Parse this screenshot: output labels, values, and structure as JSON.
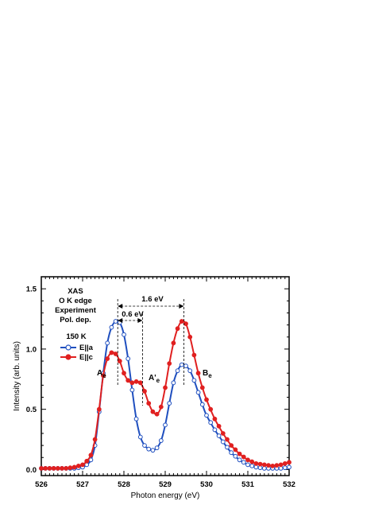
{
  "chart_data": {
    "type": "line",
    "xlabel": "Photon energy (eV)",
    "ylabel": "Intensity (arb. units)",
    "xlim": [
      526,
      532
    ],
    "ylim": [
      -0.05,
      1.6
    ],
    "xticks": [
      "526",
      "527",
      "528",
      "529",
      "530",
      "531",
      "532"
    ],
    "yticks": [
      "0.0",
      "0.5",
      "1.0",
      "1.5"
    ],
    "grid": false,
    "legend": "upper-left, inside",
    "info_lines": [
      "XAS",
      "O K edge",
      "Experiment",
      "Pol. dep."
    ],
    "temperature_label": "150 K",
    "series": [
      {
        "name": "E||a",
        "color": "#1f4fbf",
        "marker": "open-circle",
        "x": [
          526.0,
          526.2,
          526.4,
          526.6,
          526.8,
          527.0,
          527.1,
          527.2,
          527.3,
          527.4,
          527.5,
          527.6,
          527.7,
          527.8,
          527.9,
          528.0,
          528.1,
          528.2,
          528.3,
          528.4,
          528.5,
          528.6,
          528.7,
          528.8,
          528.9,
          529.0,
          529.1,
          529.2,
          529.3,
          529.4,
          529.5,
          529.6,
          529.7,
          529.8,
          529.9,
          530.0,
          530.2,
          530.4,
          530.6,
          530.8,
          531.0,
          531.2,
          531.4,
          531.6,
          531.8,
          532.0
        ],
        "y": [
          0.01,
          0.01,
          0.01,
          0.01,
          0.01,
          0.02,
          0.04,
          0.08,
          0.2,
          0.48,
          0.8,
          1.05,
          1.18,
          1.23,
          1.22,
          1.12,
          0.92,
          0.66,
          0.42,
          0.27,
          0.2,
          0.17,
          0.16,
          0.18,
          0.24,
          0.37,
          0.55,
          0.72,
          0.82,
          0.87,
          0.86,
          0.82,
          0.74,
          0.64,
          0.54,
          0.45,
          0.33,
          0.23,
          0.14,
          0.08,
          0.04,
          0.02,
          0.01,
          0.01,
          0.01,
          0.02
        ]
      },
      {
        "name": "E||c",
        "color": "#e02020",
        "marker": "filled-circle",
        "x": [
          526.0,
          526.2,
          526.4,
          526.6,
          526.8,
          527.0,
          527.1,
          527.2,
          527.3,
          527.4,
          527.5,
          527.6,
          527.7,
          527.8,
          527.9,
          528.0,
          528.1,
          528.2,
          528.3,
          528.4,
          528.5,
          528.6,
          528.7,
          528.8,
          528.9,
          529.0,
          529.1,
          529.2,
          529.3,
          529.4,
          529.5,
          529.6,
          529.7,
          529.8,
          529.9,
          530.0,
          530.2,
          530.4,
          530.6,
          530.8,
          531.0,
          531.2,
          531.4,
          531.6,
          531.8,
          532.0
        ],
        "y": [
          0.01,
          0.01,
          0.01,
          0.01,
          0.02,
          0.04,
          0.07,
          0.12,
          0.25,
          0.5,
          0.78,
          0.92,
          0.97,
          0.96,
          0.9,
          0.8,
          0.74,
          0.72,
          0.73,
          0.72,
          0.65,
          0.55,
          0.48,
          0.46,
          0.52,
          0.68,
          0.88,
          1.05,
          1.17,
          1.23,
          1.21,
          1.1,
          0.95,
          0.8,
          0.68,
          0.58,
          0.42,
          0.3,
          0.2,
          0.13,
          0.08,
          0.05,
          0.04,
          0.03,
          0.04,
          0.06
        ]
      }
    ],
    "annotations": {
      "peak_A": {
        "base": "A",
        "sub": "e",
        "x": 527.85
      },
      "peak_A_prime": {
        "base": "A'",
        "sub": "e",
        "x": 528.45
      },
      "peak_B": {
        "base": "B",
        "sub": "e",
        "x": 529.45
      },
      "gap_small": {
        "label": "0.6 eV",
        "x1": 527.85,
        "x2": 528.45
      },
      "gap_large": {
        "label": "1.6 eV",
        "x1": 527.85,
        "x2": 529.45
      }
    }
  }
}
